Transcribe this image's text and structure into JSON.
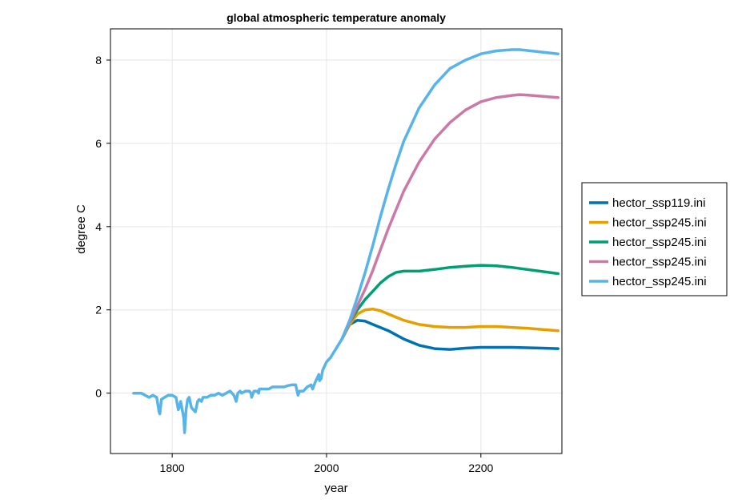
{
  "chart_data": {
    "type": "line",
    "title": "global atmospheric temperature anomaly",
    "xlabel": "year",
    "ylabel": "degree C",
    "xlim": [
      1720,
      2305
    ],
    "ylim": [
      -1.45,
      8.75
    ],
    "xticks": [
      1800,
      2000,
      2200
    ],
    "yticks": [
      0,
      2,
      4,
      6,
      8
    ],
    "grid": true,
    "legend_position": "right",
    "historical": {
      "x": [
        1750,
        1760,
        1765,
        1770,
        1775,
        1780,
        1783,
        1784,
        1786,
        1790,
        1795,
        1800,
        1805,
        1808,
        1809,
        1811,
        1815,
        1816,
        1818,
        1820,
        1822,
        1825,
        1830,
        1833,
        1835,
        1838,
        1840,
        1845,
        1850,
        1855,
        1860,
        1865,
        1870,
        1875,
        1880,
        1883,
        1885,
        1888,
        1890,
        1895,
        1900,
        1902,
        1903,
        1906,
        1910,
        1912,
        1913,
        1915,
        1920,
        1925,
        1930,
        1935,
        1940,
        1945,
        1950,
        1955,
        1960,
        1963,
        1965,
        1970,
        1975,
        1980,
        1982,
        1985,
        1990,
        1991,
        1993,
        1995,
        2000,
        2005,
        2010,
        2015,
        2020
      ],
      "y": [
        0.0,
        0.0,
        -0.05,
        -0.1,
        -0.05,
        -0.1,
        -0.45,
        -0.5,
        -0.15,
        -0.1,
        -0.05,
        -0.05,
        -0.1,
        -0.4,
        -0.35,
        -0.2,
        -0.6,
        -0.95,
        -0.4,
        -0.15,
        -0.1,
        -0.35,
        -0.45,
        -0.2,
        -0.15,
        -0.2,
        -0.1,
        -0.1,
        -0.05,
        -0.05,
        0.0,
        -0.05,
        0.0,
        0.05,
        -0.05,
        -0.2,
        0.0,
        0.05,
        0.0,
        0.05,
        0.05,
        0.0,
        -0.1,
        0.05,
        0.05,
        0.0,
        0.1,
        0.1,
        0.1,
        0.1,
        0.15,
        0.15,
        0.15,
        0.15,
        0.18,
        0.2,
        0.2,
        -0.05,
        0.05,
        0.05,
        0.15,
        0.2,
        0.1,
        0.25,
        0.45,
        0.3,
        0.35,
        0.55,
        0.75,
        0.85,
        1.0,
        1.15,
        1.3
      ]
    },
    "series": [
      {
        "name": "hector_ssp119.ini",
        "color": "#0072b2",
        "x": [
          2020,
          2030,
          2040,
          2050,
          2060,
          2080,
          2100,
          2120,
          2140,
          2160,
          2180,
          2200,
          2220,
          2240,
          2260,
          2280,
          2300
        ],
        "y": [
          1.3,
          1.65,
          1.75,
          1.73,
          1.65,
          1.5,
          1.3,
          1.15,
          1.07,
          1.05,
          1.08,
          1.1,
          1.1,
          1.1,
          1.09,
          1.08,
          1.07
        ]
      },
      {
        "name": "hector_ssp245.ini",
        "color": "#e69f00",
        "x": [
          2020,
          2030,
          2040,
          2050,
          2060,
          2070,
          2080,
          2100,
          2120,
          2140,
          2160,
          2180,
          2200,
          2220,
          2240,
          2260,
          2280,
          2300
        ],
        "y": [
          1.3,
          1.65,
          1.9,
          2.0,
          2.02,
          1.98,
          1.9,
          1.75,
          1.65,
          1.6,
          1.58,
          1.58,
          1.6,
          1.6,
          1.58,
          1.56,
          1.53,
          1.5
        ]
      },
      {
        "name": "hector_ssp245.ini",
        "color": "#009e73",
        "x": [
          2020,
          2030,
          2040,
          2050,
          2060,
          2070,
          2080,
          2090,
          2100,
          2120,
          2140,
          2160,
          2180,
          2200,
          2220,
          2240,
          2260,
          2280,
          2300
        ],
        "y": [
          1.3,
          1.7,
          2.0,
          2.25,
          2.45,
          2.65,
          2.8,
          2.9,
          2.93,
          2.93,
          2.97,
          3.02,
          3.05,
          3.07,
          3.06,
          3.02,
          2.97,
          2.92,
          2.87
        ]
      },
      {
        "name": "hector_ssp245.ini",
        "color": "#cc79a7",
        "x": [
          2020,
          2030,
          2040,
          2050,
          2060,
          2070,
          2080,
          2090,
          2100,
          2120,
          2140,
          2160,
          2180,
          2200,
          2220,
          2240,
          2250,
          2260,
          2280,
          2300
        ],
        "y": [
          1.3,
          1.7,
          2.1,
          2.5,
          2.95,
          3.45,
          3.95,
          4.4,
          4.85,
          5.55,
          6.1,
          6.5,
          6.8,
          7.0,
          7.1,
          7.15,
          7.17,
          7.16,
          7.13,
          7.1
        ]
      },
      {
        "name": "hector_ssp245.ini",
        "color": "#56b4e9",
        "x": [
          2020,
          2030,
          2040,
          2050,
          2060,
          2070,
          2080,
          2090,
          2100,
          2120,
          2140,
          2160,
          2180,
          2200,
          2220,
          2240,
          2250,
          2260,
          2280,
          2300
        ],
        "y": [
          1.3,
          1.75,
          2.3,
          2.9,
          3.55,
          4.25,
          4.9,
          5.5,
          6.05,
          6.85,
          7.4,
          7.8,
          8.0,
          8.15,
          8.22,
          8.25,
          8.25,
          8.23,
          8.19,
          8.15
        ]
      }
    ]
  }
}
